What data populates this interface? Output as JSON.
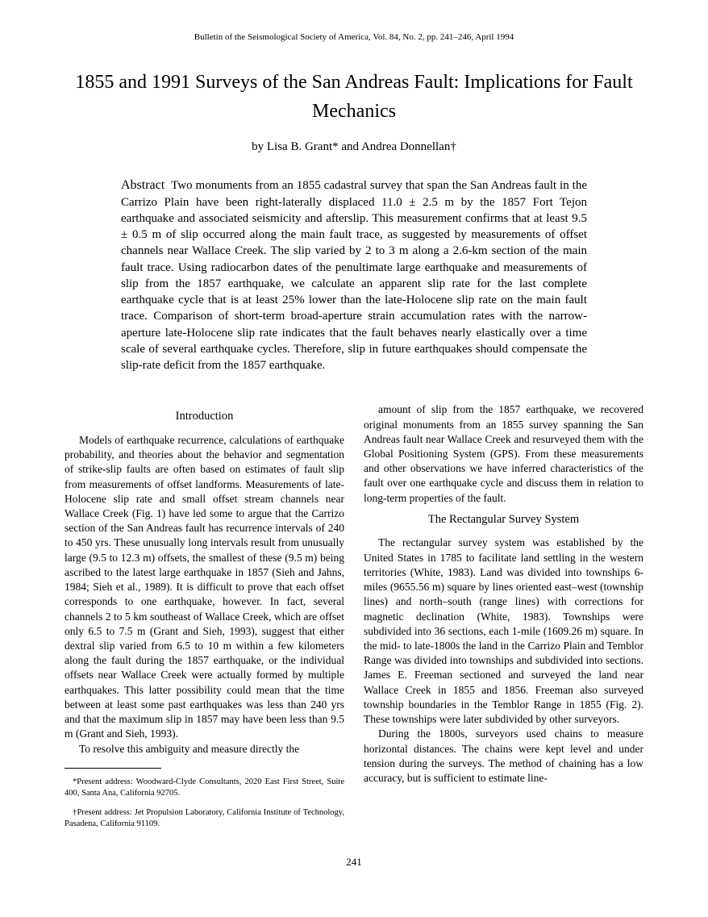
{
  "journal_header": "Bulletin of the Seismological Society of America, Vol. 84, No. 2, pp. 241–246, April 1994",
  "title": "1855 and 1991 Surveys of the San Andreas Fault: Implications for Fault Mechanics",
  "authors": "by Lisa B. Grant* and Andrea Donnellan†",
  "abstract_label": "Abstract",
  "abstract_text": "Two monuments from an 1855 cadastral survey that span the San Andreas fault in the Carrizo Plain have been right-laterally displaced 11.0 ± 2.5 m by the 1857 Fort Tejon earthquake and associated seismicity and afterslip. This measurement confirms that at least 9.5 ± 0.5 m of slip occurred along the main fault trace, as suggested by measurements of offset channels near Wallace Creek. The slip varied by 2 to 3 m along a 2.6-km section of the main fault trace. Using radiocarbon dates of the penultimate large earthquake and measurements of slip from the 1857 earthquake, we calculate an apparent slip rate for the last complete earthquake cycle that is at least 25% lower than the late-Holocene slip rate on the main fault trace. Comparison of short-term broad-aperture strain accumulation rates with the narrow-aperture late-Holocene slip rate indicates that the fault behaves nearly elastically over a time scale of several earthquake cycles. Therefore, slip in future earthquakes should compensate the slip-rate deficit from the 1857 earthquake.",
  "left_column": {
    "heading": "Introduction",
    "para1": "Models of earthquake recurrence, calculations of earthquake probability, and theories about the behavior and segmentation of strike-slip faults are often based on estimates of fault slip from measurements of offset landforms. Measurements of late-Holocene slip rate and small offset stream channels near Wallace Creek (Fig. 1) have led some to argue that the Carrizo section of the San Andreas fault has recurrence intervals of 240 to 450 yrs. These unusually long intervals result from unusually large (9.5 to 12.3 m) offsets, the smallest of these (9.5 m) being ascribed to the latest large earthquake in 1857 (Sieh and Jahns, 1984; Sieh et al., 1989). It is difficult to prove that each offset corresponds to one earthquake, however. In fact, several channels 2 to 5 km southeast of Wallace Creek, which are offset only 6.5 to 7.5 m (Grant and Sieh, 1993), suggest that either dextral slip varied from 6.5 to 10 m within a few kilometers along the fault during the 1857 earthquake, or the individual offsets near Wallace Creek were actually formed by multiple earthquakes. This latter possibility could mean that the time between at least some past earthquakes was less than 240 yrs and that the maximum slip in 1857 may have been less than 9.5 m (Grant and Sieh, 1993).",
    "para2": "To resolve this ambiguity and measure directly the",
    "footnote1": "*Present address: Woodward-Clyde Consultants, 2020 East First Street, Suite 400, Santa Ana, California 92705.",
    "footnote2": "†Present address: Jet Propulsion Laboratory, California Institute of Technology, Pasadena, California 91109."
  },
  "right_column": {
    "para1": "amount of slip from the 1857 earthquake, we recovered original monuments from an 1855 survey spanning the San Andreas fault near Wallace Creek and resurveyed them with the Global Positioning System (GPS). From these measurements and other observations we have inferred characteristics of the fault over one earthquake cycle and discuss them in relation to long-term properties of the fault.",
    "heading": "The Rectangular Survey System",
    "para2": "The rectangular survey system was established by the United States in 1785 to facilitate land settling in the western territories (White, 1983). Land was divided into townships 6-miles (9655.56 m) square by lines oriented east–west (township lines) and north–south (range lines) with corrections for magnetic declination (White, 1983). Townships were subdivided into 36 sections, each 1-mile (1609.26 m) square. In the mid- to late-1800s the land in the Carrizo Plain and Temblor Range was divided into townships and subdivided into sections. James E. Freeman sectioned and surveyed the land near Wallace Creek in 1855 and 1856. Freeman also surveyed township boundaries in the Temblor Range in 1855 (Fig. 2). These townships were later subdivided by other surveyors.",
    "para3": "During the 1800s, surveyors used chains to measure horizontal distances. The chains were kept level and under tension during the surveys. The method of chaining has a low accuracy, but is sufficient to estimate line-"
  },
  "page_number": "241"
}
